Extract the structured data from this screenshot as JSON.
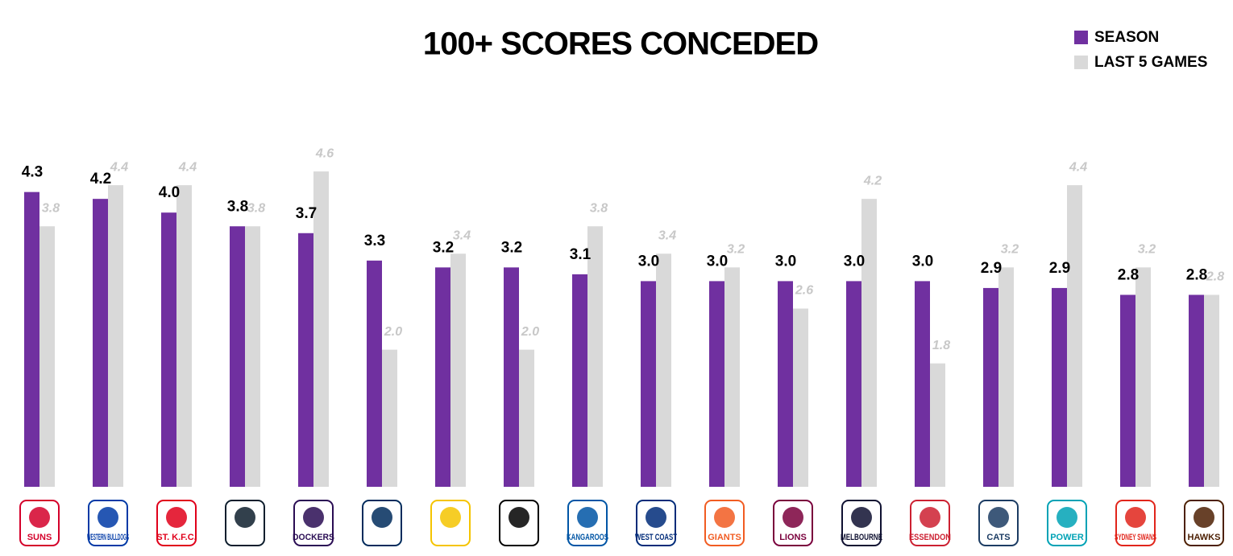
{
  "chart_data": {
    "type": "bar",
    "title": "100+ SCORES CONCEDED",
    "categories": [
      "SUNS",
      "WESTERN BULLDOGS",
      "ST. K.F.C.",
      null,
      "DOCKERS",
      null,
      null,
      null,
      "KANGAROOS",
      "WEST COAST",
      "GIANTS",
      "LIONS",
      "MELBOURNE",
      "ESSENDON",
      "CATS",
      "POWER",
      "SYDNEY SWANS",
      "HAWKS"
    ],
    "series": [
      {
        "name": "SEASON",
        "color": "#7030a0",
        "values": [
          4.3,
          4.2,
          4.0,
          3.8,
          3.7,
          3.3,
          3.2,
          3.2,
          3.1,
          3.0,
          3.0,
          3.0,
          3.0,
          3.0,
          2.9,
          2.9,
          2.8,
          2.8
        ],
        "value_labels": [
          "4.3",
          "4.2",
          "4.0",
          "3.8",
          "3.7",
          "3.3",
          "3.2",
          "3.2",
          "3.1",
          "3.0",
          "3.0",
          "3.0",
          "3.0",
          "3.0",
          "2.9",
          "2.9",
          "2.8",
          "2.8"
        ]
      },
      {
        "name": "LAST 5 GAMES",
        "color": "#d9d9d9",
        "values": [
          3.8,
          4.4,
          4.4,
          3.8,
          4.6,
          2.0,
          3.4,
          2.0,
          3.8,
          3.4,
          3.2,
          2.6,
          4.2,
          1.8,
          3.2,
          4.4,
          3.2,
          2.8
        ],
        "value_labels": [
          "3.8",
          "4.4",
          "4.4",
          "3.8",
          "4.6",
          "2.0",
          "3.4",
          "2.0",
          "3.8",
          "3.4",
          "3.2",
          "2.6",
          "4.2",
          "1.8",
          "3.2",
          "4.4",
          "3.2",
          "2.8"
        ]
      }
    ]
  }
}
